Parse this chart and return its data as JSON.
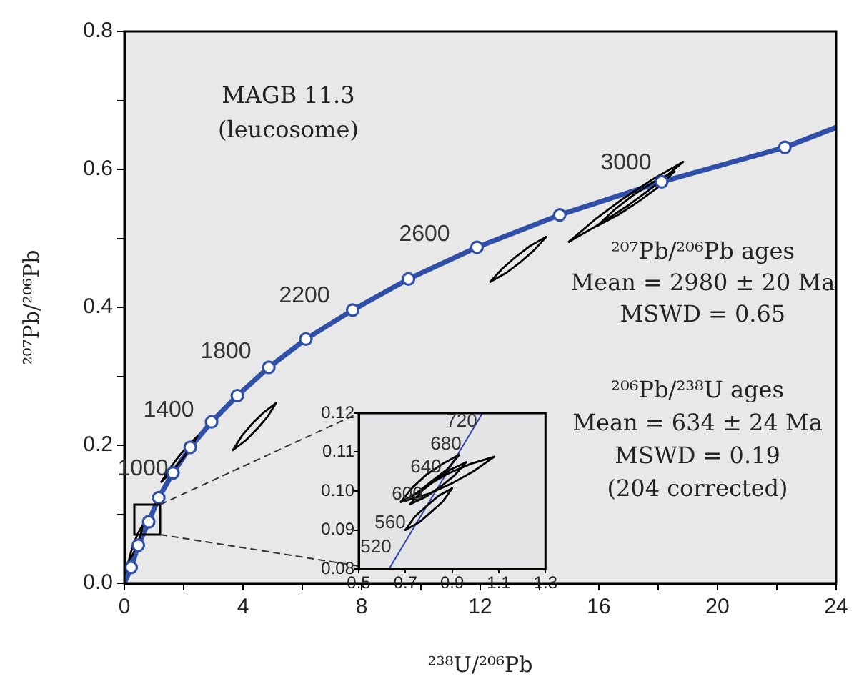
{
  "chart_data": [
    {
      "type": "line",
      "xlabel": "²³⁸U/²⁰⁶Pb",
      "ylabel": "²⁰⁷Pb/²⁰⁶Pb",
      "xlim": [
        0,
        24
      ],
      "xticks": [
        0,
        {
          "value": 2,
          "label": null
        },
        4,
        {
          "value": 6,
          "label": null
        },
        8,
        {
          "value": 10,
          "label": null
        },
        12,
        {
          "value": 14,
          "label": null
        },
        16,
        {
          "value": 18,
          "label": null
        },
        20,
        {
          "value": 22,
          "label": null
        },
        24
      ],
      "ylim": [
        0,
        0.8
      ],
      "yticks": [
        {
          "value": 0,
          "label": "0.0"
        },
        {
          "value": 0.1,
          "label": null
        },
        0.2,
        {
          "value": 0.3,
          "label": null
        },
        0.4,
        {
          "value": 0.5,
          "label": null
        },
        0.6,
        {
          "value": 0.7,
          "label": null
        },
        0.8
      ],
      "legend": false,
      "grid": false,
      "marker": "none",
      "series": [
        {
          "type": "line",
          "color": "#2f4fa8",
          "x": [
            0,
            0.23,
            0.47,
            0.82,
            1.16,
            1.64,
            2.22,
            2.94,
            3.81,
            4.87,
            6.12,
            7.7,
            9.58,
            11.89,
            14.68,
            18.12,
            22.27,
            24
          ],
          "values": [
            0,
            0.023,
            0.055,
            0.089,
            0.124,
            0.16,
            0.197,
            0.234,
            0.272,
            0.313,
            0.354,
            0.396,
            0.441,
            0.487,
            0.534,
            0.582,
            0.632,
            0.661
          ]
        },
        {
          "type": "scatter",
          "marker": "circle",
          "color": "#2f4fa8",
          "x": [
            0.23,
            0.47,
            0.82,
            1.16,
            1.64,
            2.22,
            2.94,
            3.81,
            4.87,
            6.12,
            7.7,
            9.58,
            11.89,
            14.68,
            18.12,
            22.27
          ],
          "values": [
            0.023,
            0.055,
            0.089,
            0.124,
            0.16,
            0.197,
            0.234,
            0.272,
            0.313,
            0.354,
            0.396,
            0.441,
            0.487,
            0.534,
            0.582,
            0.632
          ]
        },
        {
          "type": "line",
          "color": "#000000",
          "x": [
            3.66,
            3.95,
            4.3,
            4.68,
            5.11
          ],
          "values": [
            0.193,
            0.213,
            0.231,
            0.247,
            0.261
          ]
        },
        {
          "type": "line",
          "color": "#000000",
          "x": [
            3.66,
            4.09,
            4.48,
            4.82,
            5.11
          ],
          "values": [
            0.193,
            0.207,
            0.224,
            0.241,
            0.261
          ]
        },
        {
          "type": "line",
          "color": "#000000",
          "x": [
            12.34,
            12.74,
            13.19,
            13.68,
            14.22
          ],
          "values": [
            0.437,
            0.456,
            0.473,
            0.489,
            0.502
          ]
        },
        {
          "type": "line",
          "color": "#000000",
          "x": [
            12.34,
            12.88,
            13.37,
            13.82,
            14.22
          ],
          "values": [
            0.437,
            0.45,
            0.466,
            0.483,
            0.502
          ]
        },
        {
          "type": "line",
          "color": "#000000",
          "x": [
            14.99,
            15.86,
            16.8,
            17.79,
            18.84
          ],
          "values": [
            0.495,
            0.527,
            0.557,
            0.585,
            0.611
          ]
        },
        {
          "type": "line",
          "color": "#000000",
          "x": [
            14.99,
            16.04,
            17.03,
            17.97,
            18.84
          ],
          "values": [
            0.495,
            0.521,
            0.549,
            0.579,
            0.611
          ]
        },
        {
          "type": "line",
          "color": "#000000",
          "x": [
            15.95,
            16.51,
            17.14,
            17.81,
            18.55
          ],
          "values": [
            0.518,
            0.541,
            0.562,
            0.581,
            0.597
          ]
        },
        {
          "type": "line",
          "color": "#000000",
          "x": [
            15.95,
            16.69,
            17.36,
            17.99,
            18.55
          ],
          "values": [
            0.518,
            0.535,
            0.554,
            0.574,
            0.597
          ]
        },
        {
          "type": "line",
          "color": "#000000",
          "x": [
            1.25,
            1.51,
            1.8,
            2.11,
            2.46
          ],
          "values": [
            0.147,
            0.165,
            0.182,
            0.198,
            0.213
          ]
        },
        {
          "type": "line",
          "color": "#000000",
          "x": [
            1.25,
            1.6,
            1.92,
            2.21,
            2.46
          ],
          "values": [
            0.147,
            0.162,
            0.178,
            0.195,
            0.213
          ]
        },
        {
          "type": "line",
          "color": "#000000",
          "x": [
            0.14,
            0.23,
            0.34,
            0.47,
            0.63
          ],
          "values": [
            0.031,
            0.046,
            0.06,
            0.073,
            0.085
          ]
        },
        {
          "type": "line",
          "color": "#000000",
          "x": [
            0.14,
            0.3,
            0.44,
            0.55,
            0.63
          ],
          "values": [
            0.031,
            0.043,
            0.056,
            0.07,
            0.085
          ]
        }
      ],
      "annotations": [
        "1000",
        "1400",
        "1800",
        "2200",
        "2600",
        "3000",
        "MAGB 11.3",
        "(leucosome)",
        "²⁰⁷Pb/²⁰⁶Pb ages",
        "Mean = 2980 ± 20 Ma",
        "MSWD = 0.65",
        "²⁰⁶Pb/²³⁸U ages",
        "Mean = 634 ± 24 Ma",
        "MSWD = 0.19",
        "(204 corrected)"
      ]
    },
    {
      "type": "line",
      "xlim": [
        0.5,
        1.3
      ],
      "xticks": [
        0.5,
        0.7,
        0.9,
        1.1,
        1.3
      ],
      "ylim": [
        0.08,
        0.12
      ],
      "yticks": [
        0.08,
        0.09,
        {
          "value": 0.1,
          "label": "0.10"
        },
        0.11,
        0.12
      ],
      "legend": false,
      "grid": false,
      "marker": "none",
      "series": [
        {
          "type": "line",
          "color": "#3344aa",
          "x": [
            0.63,
            1.03
          ],
          "values": [
            0.08,
            0.12
          ]
        },
        {
          "type": "line",
          "color": "#000000",
          "x": [
            0.68,
            0.73,
            0.79,
            0.86,
            0.93
          ],
          "values": [
            0.0972,
            0.1009,
            0.1042,
            0.107,
            0.1093
          ]
        },
        {
          "type": "line",
          "color": "#000000",
          "x": [
            0.68,
            0.75,
            0.81,
            0.88,
            0.93
          ],
          "values": [
            0.0972,
            0.0995,
            0.1024,
            0.1056,
            0.1093
          ]
        },
        {
          "type": "line",
          "color": "#000000",
          "x": [
            0.72,
            0.77,
            0.83,
            0.89,
            0.96
          ],
          "values": [
            0.0966,
            0.1,
            0.1029,
            0.1054,
            0.1074
          ]
        },
        {
          "type": "line",
          "color": "#000000",
          "x": [
            0.72,
            0.79,
            0.85,
            0.91,
            0.96
          ],
          "values": [
            0.0966,
            0.0986,
            0.1011,
            0.104,
            0.1074
          ]
        },
        {
          "type": "line",
          "color": "#000000",
          "x": [
            0.7,
            0.79,
            0.88,
            0.98,
            1.08
          ],
          "values": [
            0.0975,
            0.1013,
            0.1044,
            0.107,
            0.1088
          ]
        },
        {
          "type": "line",
          "color": "#000000",
          "x": [
            0.7,
            0.8,
            0.9,
            0.99,
            1.08
          ],
          "values": [
            0.0975,
            0.0993,
            0.102,
            0.105,
            0.1088
          ]
        },
        {
          "type": "line",
          "color": "#000000",
          "x": [
            0.7,
            0.74,
            0.79,
            0.84,
            0.9
          ],
          "values": [
            0.09,
            0.0934,
            0.0961,
            0.0987,
            0.1007
          ]
        },
        {
          "type": "line",
          "color": "#000000",
          "x": [
            0.7,
            0.76,
            0.81,
            0.86,
            0.9
          ],
          "values": [
            0.09,
            0.092,
            0.0946,
            0.0973,
            0.1007
          ]
        }
      ],
      "annotations": [
        "520",
        "560",
        "600",
        "640",
        "680",
        "720"
      ]
    }
  ]
}
